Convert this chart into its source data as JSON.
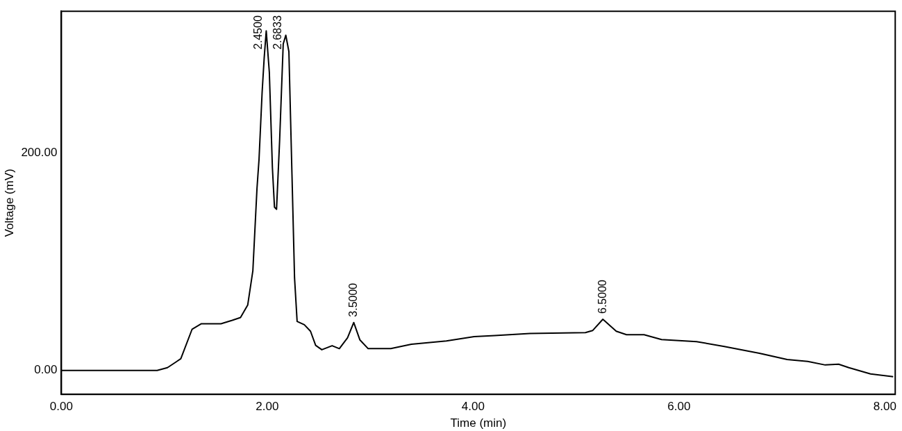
{
  "chart_data": {
    "type": "line",
    "xlabel": "Time (min)",
    "ylabel": "Voltage (mV)",
    "x": [
      0,
      0.93,
      1.03,
      1.16,
      1.27,
      1.36,
      1.55,
      1.66,
      1.74,
      1.81,
      1.86,
      1.9,
      1.92,
      1.95,
      1.97,
      1.99,
      2.02,
      2.05,
      2.07,
      2.09,
      2.12,
      2.155,
      2.18,
      2.21,
      2.24,
      2.265,
      2.29,
      2.36,
      2.42,
      2.47,
      2.53,
      2.63,
      2.7,
      2.78,
      2.84,
      2.9,
      2.98,
      3.2,
      3.4,
      3.74,
      4.01,
      4.21,
      4.55,
      5.09,
      5.16,
      5.26,
      5.39,
      5.49,
      5.66,
      5.83,
      6.17,
      6.44,
      6.78,
      7.05,
      7.25,
      7.42,
      7.55,
      7.65,
      7.86,
      8.08
    ],
    "series": [
      {
        "color": "#000000",
        "values": [
          0,
          0,
          2.5,
          10.7,
          37.9,
          42.9,
          42.9,
          46,
          48.6,
          60,
          91.5,
          167,
          194,
          255.5,
          287,
          312,
          274,
          186,
          150,
          148,
          211,
          300,
          308,
          293,
          180,
          85,
          45,
          42,
          36,
          23,
          19,
          22.7,
          20,
          30,
          44,
          28,
          20,
          20,
          24,
          27,
          31,
          32,
          34,
          34.7,
          36.6,
          47,
          36,
          32.8,
          32.8,
          28.4,
          26.5,
          22,
          15.8,
          10,
          8.2,
          5,
          5.7,
          2.5,
          -3.2,
          -5.7
        ]
      }
    ],
    "xlim": [
      0,
      8.1
    ],
    "xticks": [
      {
        "value": 0,
        "label": "0.00"
      },
      {
        "value": 2,
        "label": "2.00"
      },
      {
        "value": 4,
        "label": "4.00"
      },
      {
        "value": 6,
        "label": "6.00"
      },
      {
        "value": 8,
        "label": "8.00"
      }
    ],
    "ylim": [
      -22,
      330
    ],
    "yticks": [
      {
        "value": 0,
        "label": "0.00"
      },
      {
        "value": 200,
        "label": "200.00"
      }
    ],
    "grid": false,
    "legend": false,
    "marker": "none",
    "line_style": "solid",
    "annotations": [
      {
        "text": "2.4500",
        "x": 1.99,
        "y": 312
      },
      {
        "text": "2.6833",
        "x": 2.18,
        "y": 308
      },
      {
        "text": "3.5000",
        "x": 2.84,
        "y": 44
      },
      {
        "text": "6.5000",
        "x": 5.26,
        "y": 47
      }
    ]
  }
}
